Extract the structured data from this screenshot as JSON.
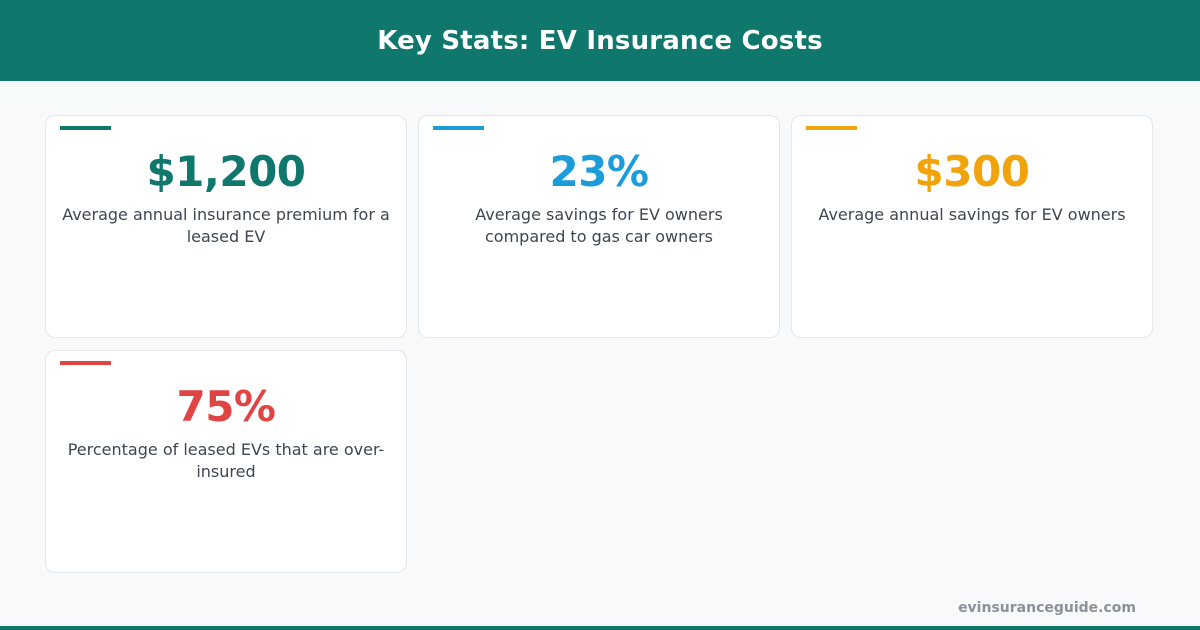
{
  "header": {
    "title": "Key Stats: EV Insurance Costs"
  },
  "stats": [
    {
      "value": "$1,200",
      "description": "Average annual insurance premium for a leased EV",
      "color": "#10776d"
    },
    {
      "value": "23%",
      "description": "Average savings for EV owners compared to gas car owners",
      "color": "#1a9dd9"
    },
    {
      "value": "$300",
      "description": "Average annual savings for EV owners",
      "color": "#f1a30b"
    },
    {
      "value": "75%",
      "description": "Percentage of leased EVs that are over-insured",
      "color": "#e04443"
    }
  ],
  "footer": {
    "site": "evinsuranceguide.com"
  }
}
